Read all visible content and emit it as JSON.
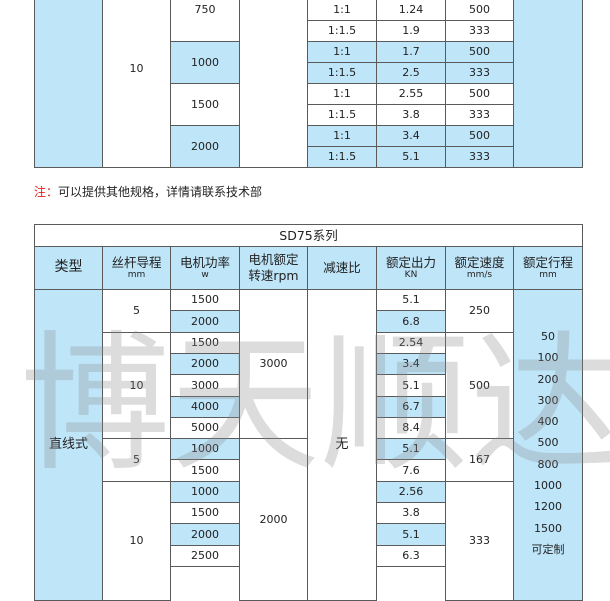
{
  "top_table": {
    "lead_mm": "10",
    "rows": [
      {
        "power": "750",
        "items": [
          {
            "ratio": "1:1",
            "force": "1.24",
            "speed": "500"
          },
          {
            "ratio": "1:1.5",
            "force": "1.9",
            "speed": "333"
          }
        ]
      },
      {
        "power": "1000",
        "items": [
          {
            "ratio": "1:1",
            "force": "1.7",
            "speed": "500"
          },
          {
            "ratio": "1:1.5",
            "force": "2.5",
            "speed": "333"
          }
        ]
      },
      {
        "power": "1500",
        "items": [
          {
            "ratio": "1:1",
            "force": "2.55",
            "speed": "500"
          },
          {
            "ratio": "1:1.5",
            "force": "3.8",
            "speed": "333"
          }
        ]
      },
      {
        "power": "2000",
        "items": [
          {
            "ratio": "1:1",
            "force": "3.4",
            "speed": "500"
          },
          {
            "ratio": "1:1.5",
            "force": "5.1",
            "speed": "333"
          }
        ]
      }
    ]
  },
  "note": {
    "label": "注：",
    "text": "可以提供其他规格，详情请联系技术部"
  },
  "sd75": {
    "title": "SD75系列",
    "headers": [
      {
        "main": "类型",
        "sub": ""
      },
      {
        "main": "丝杆导程",
        "sub": "mm"
      },
      {
        "main": "电机功率",
        "sub": "w"
      },
      {
        "main": "电机额定",
        "sub": "转速rpm"
      },
      {
        "main": "减速比",
        "sub": ""
      },
      {
        "main": "额定出力",
        "sub": "KN"
      },
      {
        "main": "额定速度",
        "sub": "mm/s"
      },
      {
        "main": "额定行程",
        "sub": "mm"
      }
    ],
    "type": "直线式",
    "ratio": "无",
    "groups": [
      {
        "lead": "5",
        "speed": "250",
        "rows": [
          {
            "power": "1500",
            "force": "5.1"
          },
          {
            "power": "2000",
            "force": "6.8"
          }
        ]
      },
      {
        "lead": "10",
        "speed": "500",
        "rows": [
          {
            "power": "1500",
            "force": "2.54"
          },
          {
            "power": "2000",
            "force": "3.4"
          },
          {
            "power": "3000",
            "force": "5.1"
          },
          {
            "power": "4000",
            "force": "6.7"
          },
          {
            "power": "5000",
            "force": "8.4"
          }
        ]
      },
      {
        "lead": "5",
        "speed": "167",
        "rows": [
          {
            "power": "1000",
            "force": "5.1"
          },
          {
            "power": "1500",
            "force": "7.6"
          }
        ]
      },
      {
        "lead": "10",
        "speed": "333",
        "rows": [
          {
            "power": "1000",
            "force": "2.56"
          },
          {
            "power": "1500",
            "force": "3.8"
          },
          {
            "power": "2000",
            "force": "5.1"
          },
          {
            "power": "2500",
            "force": "6.3"
          }
        ]
      }
    ],
    "rpm": [
      "3000",
      "2000"
    ],
    "strokes": [
      "50",
      "100",
      "200",
      "300",
      "400",
      "500",
      "800",
      "1000",
      "1200",
      "1500",
      "可定制"
    ]
  },
  "watermark": "博天顺达",
  "colors": {
    "cell_blue": "#bfe5f9",
    "border": "#5a5a5a",
    "note_red": "#e0201a"
  }
}
